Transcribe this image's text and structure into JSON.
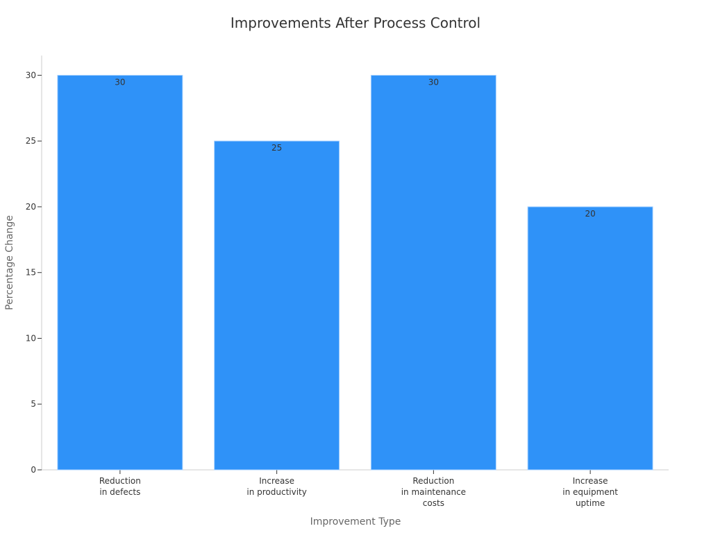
{
  "chart_data": {
    "type": "bar",
    "title": "Improvements After Process Control",
    "xlabel": "Improvement Type",
    "ylabel": "Percentage Change",
    "categories": [
      [
        "Reduction",
        "in defects"
      ],
      [
        "Increase",
        "in productivity"
      ],
      [
        "Reduction",
        "in maintenance",
        "costs"
      ],
      [
        "Increase",
        "in equipment",
        "uptime"
      ]
    ],
    "values": [
      30,
      25,
      30,
      20
    ],
    "value_labels": [
      "30",
      "25",
      "30",
      "20"
    ],
    "ylim": [
      0,
      31.5
    ],
    "yticks": [
      0,
      5,
      10,
      15,
      20,
      25,
      30
    ],
    "ytick_labels": [
      "0",
      "5",
      "10",
      "15",
      "20",
      "25",
      "30"
    ],
    "bar_color": "#2f92f8",
    "grid": false,
    "legend": "none"
  }
}
